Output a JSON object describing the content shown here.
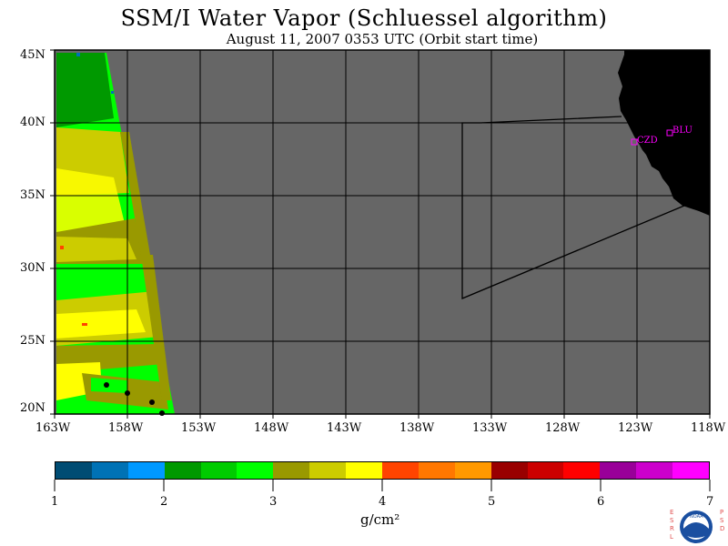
{
  "title": "SSM/I Water Vapor (Schluessel algorithm)",
  "subtitle": "August 11, 2007  0353 UTC  (Orbit start time)",
  "lat_labels": [
    "45N",
    "40N",
    "35N",
    "30N",
    "25N",
    "20N"
  ],
  "lon_labels": [
    "163W",
    "158W",
    "153W",
    "148W",
    "143W",
    "138W",
    "133W",
    "128W",
    "123W",
    "118W"
  ],
  "stations": [
    {
      "code": "CZD"
    },
    {
      "code": "BLU"
    }
  ],
  "colorbar": {
    "colors": [
      "#004c73",
      "#0072b5",
      "#0099ff",
      "#009900",
      "#00cc00",
      "#00ff00",
      "#999900",
      "#cccc00",
      "#ffff00",
      "#ff4400",
      "#ff7700",
      "#ff9900",
      "#990000",
      "#cc0000",
      "#ff0000",
      "#990099",
      "#cc00cc",
      "#ff00ff"
    ],
    "ticks": [
      "1",
      "2",
      "3",
      "4",
      "5",
      "6",
      "7"
    ],
    "unit": "g/cm²"
  },
  "logo": {
    "left_text": "ESRL",
    "right_text": "PSD",
    "center_text": "NOAA"
  },
  "colors": {
    "no_data": "#666666",
    "land": "#000000",
    "station": "#ff00ff"
  }
}
